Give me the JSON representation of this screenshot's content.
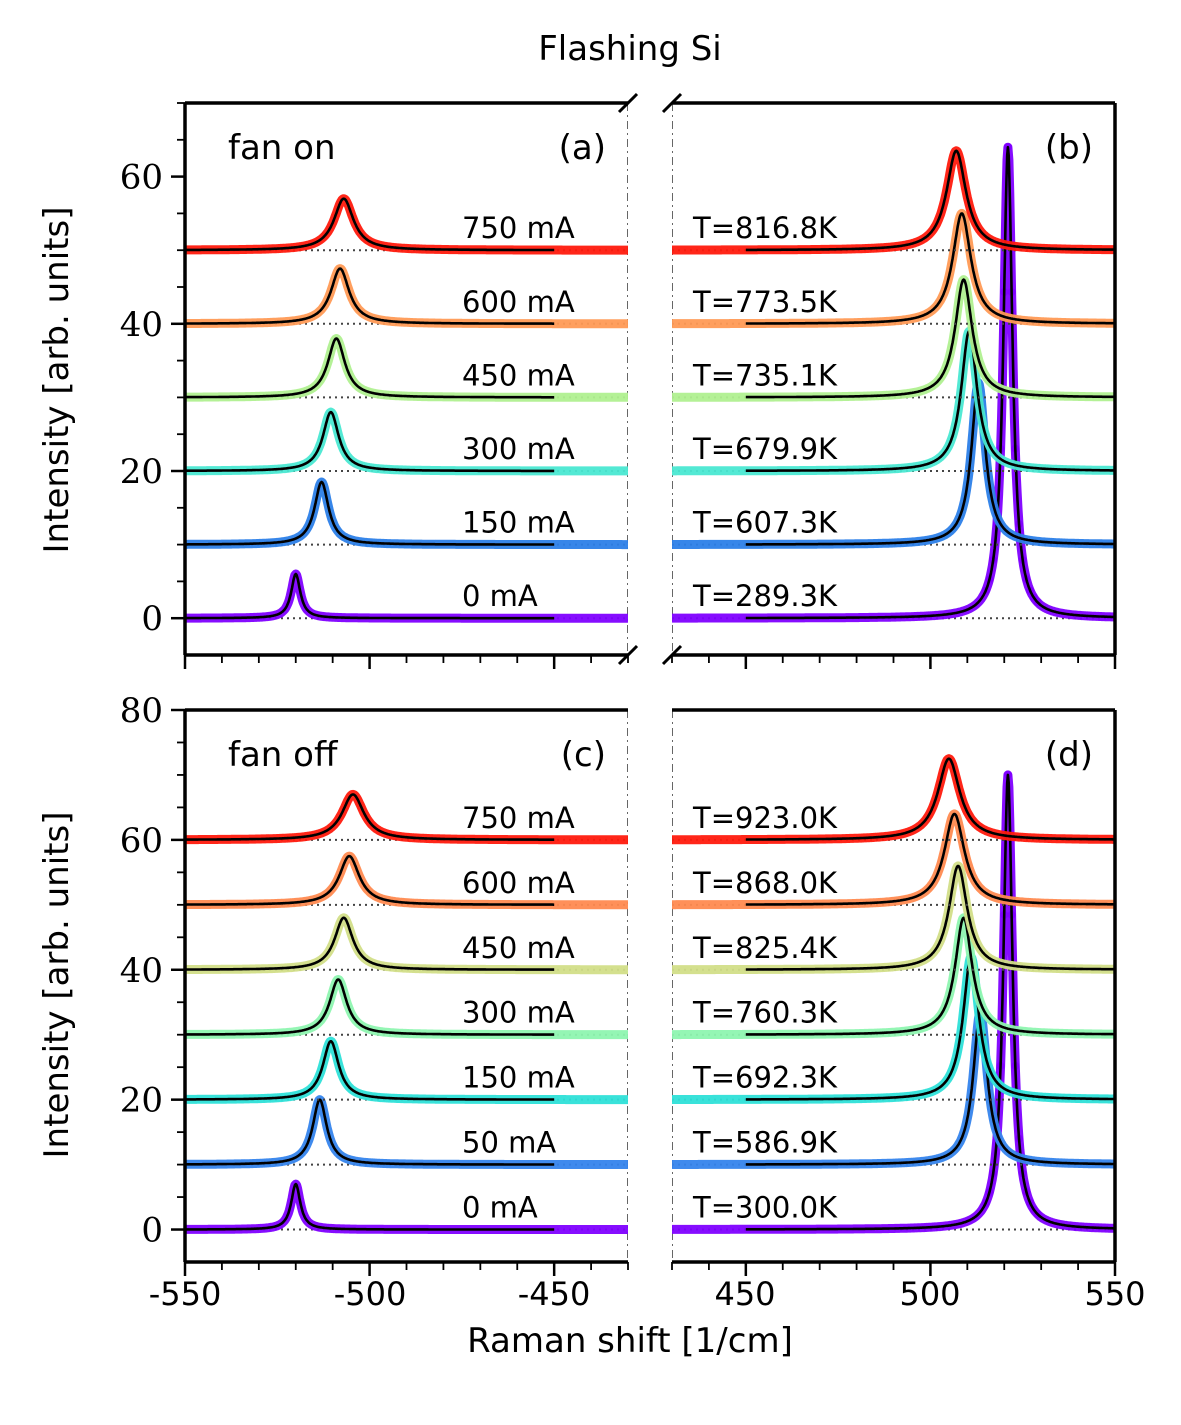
{
  "figure": {
    "title": "Flashing Si",
    "xlabel": "Raman shift [1/cm]",
    "ylabel": "Intensity [arb. units]",
    "xticks_left": [
      "-550",
      "-500",
      "-450"
    ],
    "xticks_right": [
      "450",
      "500",
      "550"
    ]
  },
  "chart_data": [
    {
      "type": "line",
      "panel": "(a)",
      "annotation": "fan on",
      "xlim": [
        -550,
        -430
      ],
      "ylim": [
        -5,
        70
      ],
      "yticks": [
        "0",
        "20",
        "40",
        "60"
      ],
      "series": [
        {
          "name": "0 mA",
          "offset": 0,
          "center": -520.0,
          "height": 6.0,
          "width": 1.5,
          "color": "#8000ff"
        },
        {
          "name": "150 mA",
          "offset": 10,
          "center": -513.0,
          "height": 8.5,
          "width": 2.3,
          "color": "#2c7fe8"
        },
        {
          "name": "300 mA",
          "offset": 20,
          "center": -510.5,
          "height": 8.0,
          "width": 2.6,
          "color": "#4ae8d2"
        },
        {
          "name": "450 mA",
          "offset": 30,
          "center": -509.0,
          "height": 8.0,
          "width": 2.8,
          "color": "#b0f090"
        },
        {
          "name": "600 mA",
          "offset": 40,
          "center": -508.0,
          "height": 7.5,
          "width": 3.0,
          "color": "#ff9a55"
        },
        {
          "name": "750 mA",
          "offset": 50,
          "center": -507.0,
          "height": 7.0,
          "width": 3.2,
          "color": "#ff1a0d"
        }
      ]
    },
    {
      "type": "line",
      "panel": "(b)",
      "xlim": [
        430,
        550
      ],
      "ylim": [
        -5,
        70
      ],
      "series": [
        {
          "name": "T=289.3K",
          "offset": 0,
          "center": 521.0,
          "height": 64.0,
          "width": 1.5,
          "color": "#8000ff"
        },
        {
          "name": "T=607.3K",
          "offset": 10,
          "center": 513.0,
          "height": 22.0,
          "width": 2.3,
          "color": "#2c7fe8"
        },
        {
          "name": "T=679.9K",
          "offset": 20,
          "center": 510.5,
          "height": 19.0,
          "width": 2.6,
          "color": "#4ae8d2"
        },
        {
          "name": "T=735.1K",
          "offset": 30,
          "center": 509.0,
          "height": 16.0,
          "width": 2.8,
          "color": "#b0f090"
        },
        {
          "name": "T=773.5K",
          "offset": 40,
          "center": 508.5,
          "height": 15.0,
          "width": 3.0,
          "color": "#ff9a55"
        },
        {
          "name": "T=816.8K",
          "offset": 50,
          "center": 507.0,
          "height": 13.5,
          "width": 3.2,
          "color": "#ff1a0d"
        }
      ]
    },
    {
      "type": "line",
      "panel": "(c)",
      "annotation": "fan off",
      "xlim": [
        -550,
        -430
      ],
      "ylim": [
        -5,
        80
      ],
      "yticks": [
        "0",
        "20",
        "40",
        "60",
        "80"
      ],
      "series": [
        {
          "name": "0 mA",
          "offset": 0,
          "center": -520.0,
          "height": 7.0,
          "width": 1.5,
          "color": "#8000ff"
        },
        {
          "name": "50 mA",
          "offset": 10,
          "center": -513.5,
          "height": 10.0,
          "width": 2.3,
          "color": "#3584ec"
        },
        {
          "name": "150 mA",
          "offset": 20,
          "center": -510.5,
          "height": 9.0,
          "width": 2.6,
          "color": "#2ee0d8"
        },
        {
          "name": "300 mA",
          "offset": 30,
          "center": -508.5,
          "height": 8.5,
          "width": 2.8,
          "color": "#8ef5b0"
        },
        {
          "name": "450 mA",
          "offset": 40,
          "center": -507.0,
          "height": 8.0,
          "width": 3.0,
          "color": "#d2de88"
        },
        {
          "name": "600 mA",
          "offset": 50,
          "center": -505.5,
          "height": 7.5,
          "width": 3.3,
          "color": "#ff8a50"
        },
        {
          "name": "750 mA",
          "offset": 60,
          "center": -504.5,
          "height": 7.0,
          "width": 3.6,
          "color": "#ff1a0d"
        }
      ]
    },
    {
      "type": "line",
      "panel": "(d)",
      "xlim": [
        430,
        550
      ],
      "ylim": [
        -5,
        80
      ],
      "series": [
        {
          "name": "T=300.0K",
          "offset": 0,
          "center": 521.0,
          "height": 70.0,
          "width": 1.5,
          "color": "#8000ff"
        },
        {
          "name": "T=586.9K",
          "offset": 10,
          "center": 513.5,
          "height": 23.5,
          "width": 2.3,
          "color": "#3584ec"
        },
        {
          "name": "T=692.3K",
          "offset": 20,
          "center": 511.0,
          "height": 22.0,
          "width": 2.6,
          "color": "#2ee0d8"
        },
        {
          "name": "T=760.3K",
          "offset": 30,
          "center": 509.0,
          "height": 18.0,
          "width": 2.8,
          "color": "#8ef5b0"
        },
        {
          "name": "T=825.4K",
          "offset": 40,
          "center": 507.5,
          "height": 16.0,
          "width": 3.0,
          "color": "#d2de88"
        },
        {
          "name": "T=868.0K",
          "offset": 50,
          "center": 506.5,
          "height": 14.0,
          "width": 3.3,
          "color": "#ff8a50"
        },
        {
          "name": "T=923.0K",
          "offset": 60,
          "center": 505.0,
          "height": 12.5,
          "width": 3.6,
          "color": "#ff1a0d"
        }
      ]
    }
  ]
}
